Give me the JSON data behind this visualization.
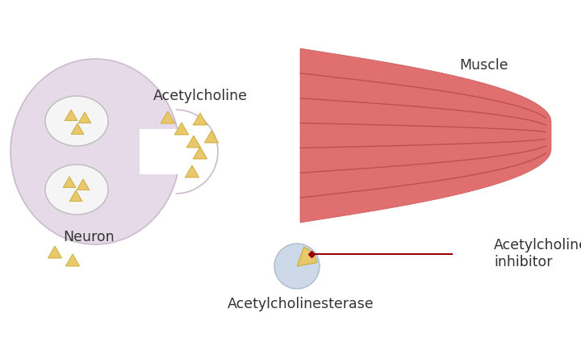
{
  "bg_color": "#ffffff",
  "neuron_color": "#e6d9e8",
  "neuron_outline": "#ccbbcc",
  "vesicle_color": "#f5f5f5",
  "vesicle_outline": "#bbbbbb",
  "triangle_color": "#e8c86a",
  "triangle_outline": "#c8a830",
  "muscle_color": "#e07070",
  "muscle_stripe_color": "#c05050",
  "muscle_dark_edge": "#cc5555",
  "ache_color": "#cdd8e8",
  "ache_outline": "#aabbcc",
  "arrow_color": "#990000",
  "text_color": "#333333",
  "label_neuron": "Neuron",
  "label_acetylcholine": "Acetylcholine",
  "label_muscle": "Muscle",
  "label_ache": "Acetylcholinesterase",
  "label_inhibitor": "Acetylcholinesterase\ninhibitor",
  "fig_w": 7.2,
  "fig_h": 4.24,
  "dpi": 100
}
